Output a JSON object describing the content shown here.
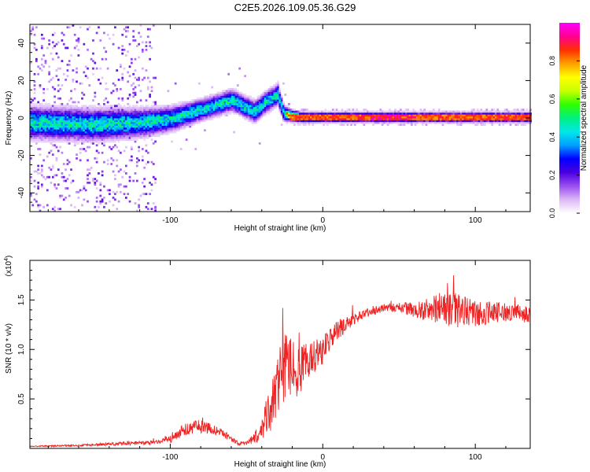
{
  "title": "C2E5.2026.109.05.36.G29",
  "chart_data": [
    {
      "type": "heatmap",
      "title": "C2E5.2026.109.05.36.G29",
      "xlabel": "Height of straight line (km)",
      "ylabel": "Frequency (Hz)",
      "xlim": [
        -192,
        136
      ],
      "ylim": [
        -50,
        50
      ],
      "xticks": [
        -100,
        0,
        100
      ],
      "yticks": [
        -40,
        -20,
        0,
        20,
        40
      ],
      "ridge": {
        "x": [
          -192,
          -150,
          -120,
          -100,
          -80,
          -60,
          -45,
          -38,
          -30,
          -26,
          -22,
          -15,
          0,
          40,
          80,
          136
        ],
        "freq": [
          -3,
          -4,
          -3,
          -1,
          4,
          9,
          3,
          8,
          12,
          2,
          1,
          0,
          0,
          0,
          0,
          0
        ],
        "spread": [
          4.5,
          4.5,
          4,
          3.5,
          3,
          3,
          3,
          3,
          3,
          2.2,
          1.6,
          1.4,
          1.3,
          1.3,
          1.4,
          1.4
        ]
      },
      "colorbar": {
        "label": "Normalized spectral amplitude",
        "ticks": [
          0.0,
          0.2,
          0.4,
          0.6,
          0.8
        ],
        "colors": [
          "#ffffff",
          "#dcb8f5",
          "#9a4ef0",
          "#4a00e0",
          "#0000ff",
          "#00a0ff",
          "#00e8e8",
          "#00f080",
          "#30ff00",
          "#c8ff00",
          "#ffff00",
          "#ffa000",
          "#ff3000",
          "#ff0090",
          "#ff00ff"
        ]
      }
    },
    {
      "type": "line",
      "xlabel": "Height of straight line (km)",
      "ylabel": "SNR (10 * v/v)",
      "exponent_label": "(x10",
      "exponent_power": "4",
      "exponent_close": ")",
      "xlim": [
        -192,
        136
      ],
      "ylim": [
        0,
        1.9
      ],
      "xticks": [
        -100,
        0,
        100
      ],
      "yticks": [
        0.5,
        1.0,
        1.5
      ],
      "series": [
        {
          "name": "SNR",
          "color": "#ee2222",
          "x": [
            -192,
            -160,
            -130,
            -110,
            -100,
            -90,
            -80,
            -70,
            -60,
            -55,
            -50,
            -45,
            -40,
            -35,
            -30,
            -25,
            -20,
            -15,
            -10,
            -5,
            0,
            10,
            20,
            30,
            40,
            50,
            60,
            70,
            80,
            90,
            100,
            110,
            120,
            136
          ],
          "y": [
            0.02,
            0.03,
            0.05,
            0.06,
            0.09,
            0.2,
            0.22,
            0.18,
            0.1,
            0.05,
            0.05,
            0.1,
            0.18,
            0.4,
            0.6,
            0.8,
            0.85,
            0.75,
            0.9,
            0.95,
            1.0,
            1.2,
            1.3,
            1.38,
            1.42,
            1.42,
            1.4,
            1.4,
            1.42,
            1.38,
            1.35,
            1.37,
            1.38,
            1.35
          ],
          "noise": [
            0.005,
            0.01,
            0.02,
            0.02,
            0.04,
            0.07,
            0.07,
            0.05,
            0.03,
            0.02,
            0.02,
            0.06,
            0.1,
            0.25,
            0.3,
            0.35,
            0.3,
            0.25,
            0.2,
            0.18,
            0.15,
            0.1,
            0.06,
            0.05,
            0.04,
            0.05,
            0.08,
            0.12,
            0.18,
            0.18,
            0.15,
            0.12,
            0.1,
            0.08
          ]
        }
      ]
    }
  ]
}
